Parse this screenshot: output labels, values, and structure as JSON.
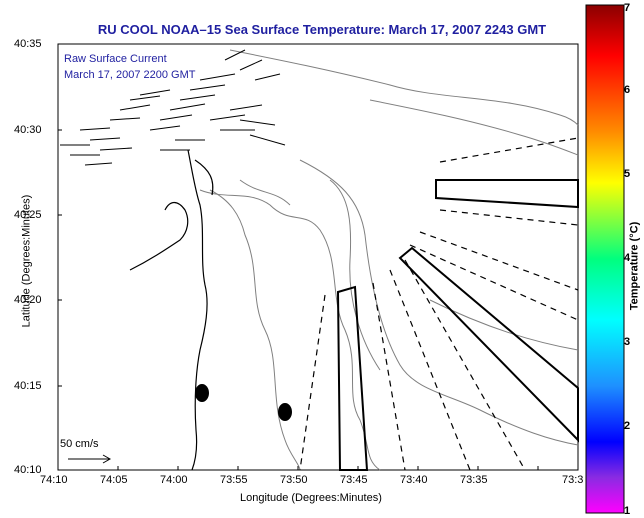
{
  "title": "RU COOL  NOAA–15  Sea Surface Temperature:  March 17, 2007 2243 GMT",
  "legend": {
    "line1": "Raw Surface Current",
    "line2": "March 17, 2007 2200 GMT",
    "scale_label": "50 cm/s"
  },
  "axes": {
    "x_label": "Longitude (Degrees:Minutes)",
    "y_label": "Latitude (Degrees:Minutes)",
    "x_ticks": [
      "74:10",
      "74:05",
      "74:00",
      "73:55",
      "73:50",
      "73:45",
      "73:40",
      "73:35",
      "73:3"
    ],
    "y_ticks": [
      "40:35",
      "40:30",
      "40:25",
      "40:20",
      "40:15",
      "40:10"
    ]
  },
  "colorbar": {
    "label": "Temperature (°C)",
    "ticks": [
      "7",
      "6",
      "5",
      "4",
      "3",
      "2",
      "1"
    ]
  },
  "colors": {
    "title": "#1f1fa0",
    "land_contour": "#808080",
    "coast": "#000000"
  }
}
